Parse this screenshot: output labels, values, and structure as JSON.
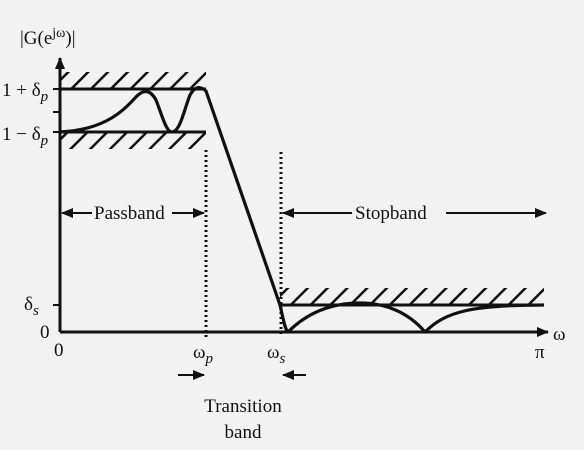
{
  "colors": {
    "background": "#f2f2f2",
    "ink": "#111111"
  },
  "labels": {
    "y_axis": "|G(e",
    "y_axis_sup": "jω",
    "y_axis_close": ")|",
    "x_axis": "ω",
    "pass_upper": "1 + δ",
    "pass_lower": "1 − δ",
    "pass_sub": "p",
    "stop_level": "δ",
    "stop_sub": "s",
    "origin_y": "0",
    "origin_x": "0",
    "omega_p": "ω",
    "omega_p_sub": "p",
    "omega_s": "ω",
    "omega_s_sub": "s",
    "pi": "π",
    "passband": "Passband",
    "stopband": "Stopband",
    "transition_line1": "Transition",
    "transition_line2": "band"
  }
}
